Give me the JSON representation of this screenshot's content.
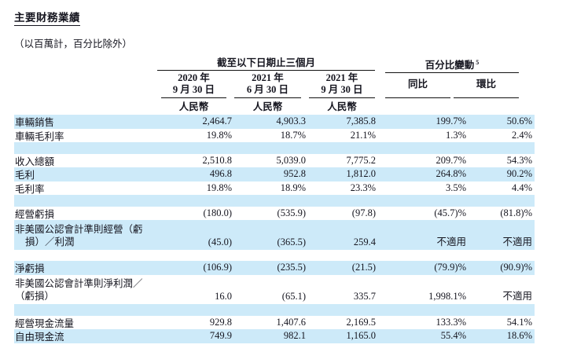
{
  "page": {
    "title": "主要財務業績",
    "units_note": "（以百萬計，百分比除外）"
  },
  "colors": {
    "stripe": "#cdeaf9",
    "ink": "#15151f",
    "line": "#111111"
  },
  "table": {
    "group_headers": {
      "periods": "截至以下日期止三個月",
      "pct_change": "百分比變動",
      "pct_change_footnote": "5"
    },
    "period_columns": [
      {
        "year": "2020 年",
        "date": "9 月 30 日",
        "currency": "人民幣"
      },
      {
        "year": "2021 年",
        "date": "6 月 30 日",
        "currency": "人民幣"
      },
      {
        "year": "2021 年",
        "date": "9 月 30 日",
        "currency": "人民幣"
      }
    ],
    "change_columns": [
      {
        "label": "同比"
      },
      {
        "label": "環比"
      }
    ],
    "rows": [
      {
        "type": "data",
        "shade": true,
        "label": "車輛銷售",
        "values": [
          "2,464.7",
          "4,903.3",
          "7,385.8",
          "199.7%",
          "50.6%"
        ]
      },
      {
        "type": "data",
        "shade": false,
        "label": "車輛毛利率",
        "values": [
          "19.8%",
          "18.7%",
          "21.1%",
          "1.3%",
          "2.4%"
        ]
      },
      {
        "type": "spacer",
        "shade": true
      },
      {
        "type": "data",
        "shade": false,
        "label": "收入總額",
        "values": [
          "2,510.8",
          "5,039.0",
          "7,775.2",
          "209.7%",
          "54.3%"
        ]
      },
      {
        "type": "data",
        "shade": true,
        "label": "毛利",
        "values": [
          "496.8",
          "952.8",
          "1,812.0",
          "264.8%",
          "90.2%"
        ]
      },
      {
        "type": "data",
        "shade": false,
        "label": "毛利率",
        "values": [
          "19.8%",
          "18.9%",
          "23.3%",
          "3.5%",
          "4.4%"
        ]
      },
      {
        "type": "spacer",
        "shade": true
      },
      {
        "type": "data",
        "shade": false,
        "label": "經營虧損",
        "values": [
          "(180.0)",
          "(535.9)",
          "(97.8)",
          "(45.7)%",
          "(81.8)%"
        ]
      },
      {
        "type": "data2",
        "shade": true,
        "indent_line2": true,
        "label_lines": [
          "非美國公認會計準則經營（虧",
          "損）／利潤"
        ],
        "values": [
          "(45.0)",
          "(365.5)",
          "259.4",
          "不適用",
          "不適用"
        ]
      },
      {
        "type": "spacer",
        "shade": false
      },
      {
        "type": "data",
        "shade": true,
        "label": "淨虧損",
        "values": [
          "(106.9)",
          "(235.5)",
          "(21.5)",
          "(79.9)%",
          "(90.9)%"
        ]
      },
      {
        "type": "data2",
        "shade": false,
        "indent_line2": false,
        "label_lines": [
          "非美國公認會計準則淨利潤／",
          "（虧損）"
        ],
        "values": [
          "16.0",
          "(65.1)",
          "335.7",
          "1,998.1%",
          "不適用"
        ]
      },
      {
        "type": "spacer",
        "shade": true
      },
      {
        "type": "data",
        "shade": false,
        "label": "經營現金流量",
        "values": [
          "929.8",
          "1,407.6",
          "2,169.5",
          "133.3%",
          "54.1%"
        ]
      },
      {
        "type": "data",
        "shade": true,
        "label": "自由現金流",
        "values": [
          "749.9",
          "982.1",
          "1,165.0",
          "55.4%",
          "18.6%"
        ]
      }
    ]
  }
}
